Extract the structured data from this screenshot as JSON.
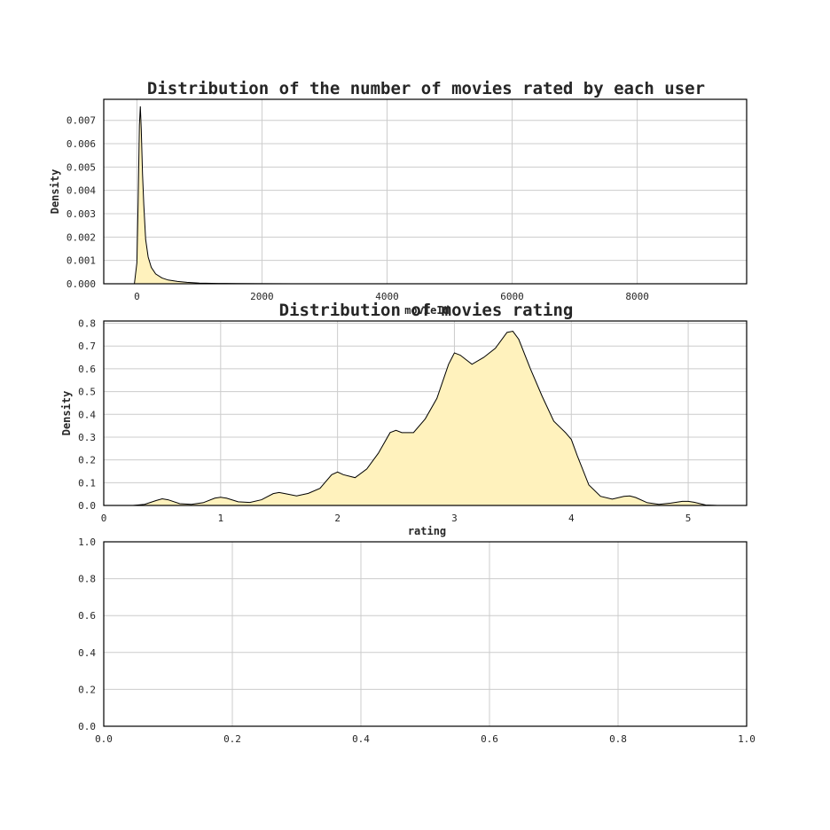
{
  "chart_data": [
    {
      "type": "area",
      "title": "Distribution of the number of movies rated by each user",
      "xlabel": "movieId",
      "ylabel": "Density",
      "xlim": [
        -530,
        9750
      ],
      "ylim": [
        0,
        0.0079
      ],
      "xticks": [
        0,
        2000,
        4000,
        6000,
        8000
      ],
      "xticklabels": [
        "0",
        "2000",
        "4000",
        "6000",
        "8000"
      ],
      "yticks": [
        0,
        0.001,
        0.002,
        0.003,
        0.004,
        0.005,
        0.006,
        0.007
      ],
      "yticklabels": [
        "0.000",
        "0.001",
        "0.002",
        "0.003",
        "0.004",
        "0.005",
        "0.006",
        "0.007"
      ],
      "grid": true,
      "fill_color": "#fff2bd",
      "x": [
        -40,
        0,
        20,
        40,
        55,
        70,
        90,
        110,
        140,
        180,
        230,
        300,
        400,
        500,
        650,
        800,
        1000,
        1300,
        1600,
        2000,
        2500,
        3000
      ],
      "y": [
        0,
        0.0009,
        0.0035,
        0.0068,
        0.0076,
        0.0066,
        0.0047,
        0.0034,
        0.0019,
        0.00115,
        0.0007,
        0.00042,
        0.00025,
        0.00016,
        0.0001,
        6e-05,
        3e-05,
        1.5e-05,
        8e-06,
        4e-06,
        2e-06,
        0
      ]
    },
    {
      "type": "area",
      "title": "Distribution of movies rating",
      "xlabel": "rating",
      "ylabel": "Density",
      "xlim": [
        0,
        5.5
      ],
      "ylim": [
        0,
        0.81
      ],
      "xticks": [
        0,
        1,
        2,
        3,
        4,
        5
      ],
      "xticklabels": [
        "0",
        "1",
        "2",
        "3",
        "4",
        "5"
      ],
      "yticks": [
        0,
        0.1,
        0.2,
        0.3,
        0.4,
        0.5,
        0.6,
        0.7,
        0.8
      ],
      "yticklabels": [
        "0.0",
        "0.1",
        "0.2",
        "0.3",
        "0.4",
        "0.5",
        "0.6",
        "0.7",
        "0.8"
      ],
      "grid": true,
      "fill_color": "#fff2bd",
      "x": [
        0.25,
        0.35,
        0.45,
        0.5,
        0.55,
        0.65,
        0.75,
        0.85,
        0.95,
        1.0,
        1.05,
        1.15,
        1.25,
        1.35,
        1.45,
        1.5,
        1.55,
        1.65,
        1.75,
        1.85,
        1.95,
        2.0,
        2.05,
        2.15,
        2.25,
        2.35,
        2.45,
        2.5,
        2.55,
        2.65,
        2.75,
        2.85,
        2.95,
        3.0,
        3.05,
        3.15,
        3.25,
        3.35,
        3.45,
        3.5,
        3.55,
        3.65,
        3.75,
        3.85,
        3.95,
        4.0,
        4.05,
        4.15,
        4.25,
        4.35,
        4.45,
        4.5,
        4.55,
        4.65,
        4.75,
        4.85,
        4.95,
        5.0,
        5.05,
        5.15,
        5.25
      ],
      "y": [
        0,
        0.005,
        0.022,
        0.029,
        0.025,
        0.008,
        0.005,
        0.012,
        0.032,
        0.036,
        0.032,
        0.016,
        0.013,
        0.025,
        0.052,
        0.057,
        0.052,
        0.042,
        0.053,
        0.075,
        0.135,
        0.147,
        0.135,
        0.122,
        0.16,
        0.23,
        0.32,
        0.33,
        0.32,
        0.32,
        0.38,
        0.47,
        0.62,
        0.67,
        0.66,
        0.62,
        0.65,
        0.69,
        0.76,
        0.765,
        0.73,
        0.6,
        0.48,
        0.37,
        0.32,
        0.29,
        0.22,
        0.09,
        0.04,
        0.028,
        0.04,
        0.042,
        0.035,
        0.012,
        0.005,
        0.01,
        0.018,
        0.018,
        0.014,
        0.002,
        0
      ]
    },
    {
      "type": "empty",
      "title": "",
      "xlabel": "",
      "ylabel": "",
      "xlim": [
        0,
        1
      ],
      "ylim": [
        0,
        1
      ],
      "xticks": [
        0,
        0.2,
        0.4,
        0.6,
        0.8,
        1.0
      ],
      "xticklabels": [
        "0.0",
        "0.2",
        "0.4",
        "0.6",
        "0.8",
        "1.0"
      ],
      "yticks": [
        0,
        0.2,
        0.4,
        0.6,
        0.8,
        1.0
      ],
      "yticklabels": [
        "0.0",
        "0.2",
        "0.4",
        "0.6",
        "0.8",
        "1.0"
      ],
      "grid": true
    }
  ]
}
